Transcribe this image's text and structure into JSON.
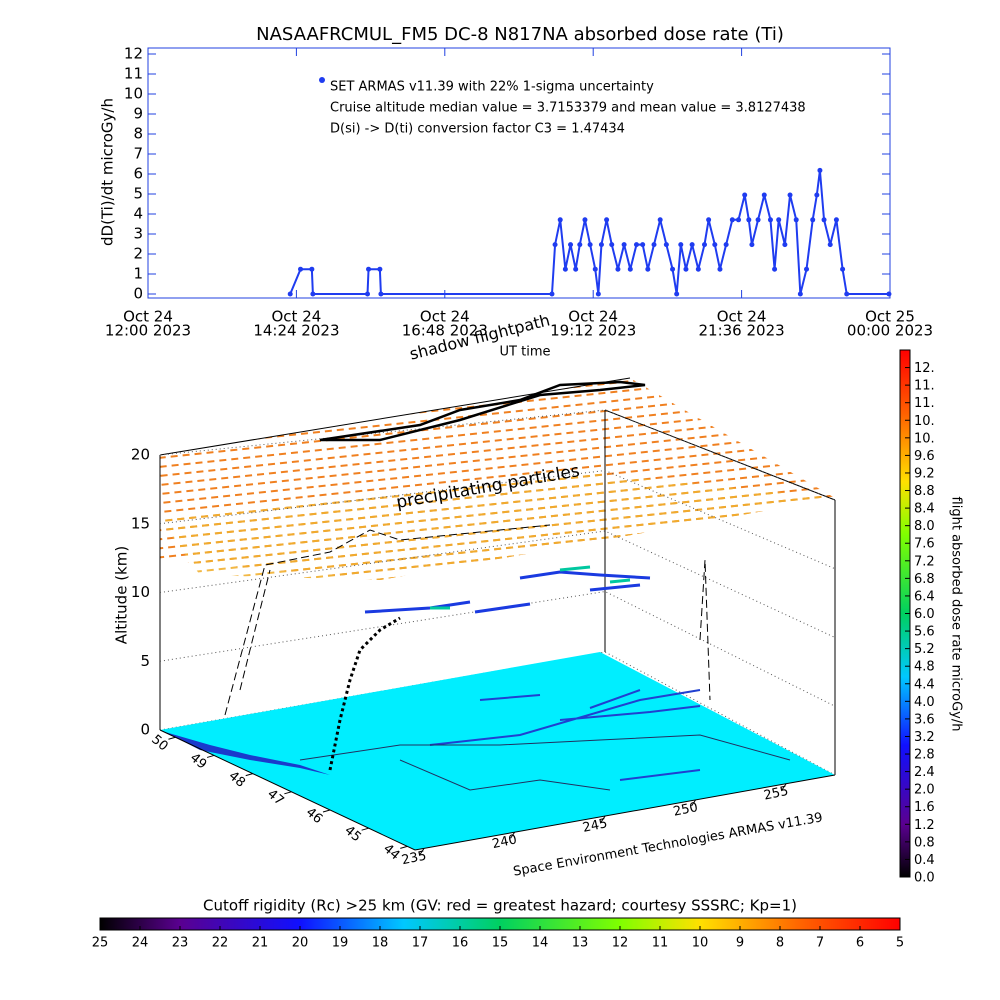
{
  "chart_data": [
    {
      "type": "timeline",
      "title": "NASAAFRCMUL_FM5 DC-8   N817NA absorbed dose rate (Ti)",
      "ylabel": "dD(Ti)/dt microGy/h",
      "xlabel": "UT time",
      "annotations": [
        "SET ARMAS v11.39 with 22% 1-sigma uncertainty",
        "Cruise altitude median value = 3.7153379 and mean value = 3.8127438",
        "D(si) -> D(ti) conversion factor C3 = 1.47434"
      ],
      "color": "#1f3cf0",
      "xlim": [
        "2023-10-24T12:00",
        "2023-10-25T00:00"
      ],
      "xticks": [
        {
          "value": "2023-10-24T12:00",
          "label": [
            "Oct 24",
            "12:00 2023"
          ]
        },
        {
          "value": "2023-10-24T14:24",
          "label": [
            "Oct 24",
            "14:24 2023"
          ]
        },
        {
          "value": "2023-10-24T16:48",
          "label": [
            "Oct 24",
            "16:48 2023"
          ]
        },
        {
          "value": "2023-10-24T19:12",
          "label": [
            "Oct 24",
            "19:12 2023"
          ]
        },
        {
          "value": "2023-10-24T21:36",
          "label": [
            "Oct 24",
            "21:36 2023"
          ]
        },
        {
          "value": "2023-10-25T00:00",
          "label": [
            "Oct 25",
            "00:00 2023"
          ]
        }
      ],
      "ylim": [
        0,
        12
      ],
      "yticks": [
        0,
        1,
        2,
        3,
        4,
        5,
        6,
        7,
        8,
        9,
        10,
        11,
        12
      ],
      "x": [
        "2023-10-24T14:18",
        "2023-10-24T14:28",
        "2023-10-24T14:39",
        "2023-10-24T14:40",
        "2023-10-24T15:33",
        "2023-10-24T15:34",
        "2023-10-24T15:45",
        "2023-10-24T15:46",
        "2023-10-24T18:32",
        "2023-10-24T18:35",
        "2023-10-24T18:40",
        "2023-10-24T18:45",
        "2023-10-24T18:50",
        "2023-10-24T18:55",
        "2023-10-24T18:59",
        "2023-10-24T19:04",
        "2023-10-24T19:09",
        "2023-10-24T19:14",
        "2023-10-24T19:17",
        "2023-10-24T19:20",
        "2023-10-24T19:25",
        "2023-10-24T19:30",
        "2023-10-24T19:36",
        "2023-10-24T19:42",
        "2023-10-24T19:48",
        "2023-10-24T19:54",
        "2023-10-24T20:00",
        "2023-10-24T20:05",
        "2023-10-24T20:11",
        "2023-10-24T20:17",
        "2023-10-24T20:23",
        "2023-10-24T20:29",
        "2023-10-24T20:33",
        "2023-10-24T20:37",
        "2023-10-24T20:42",
        "2023-10-24T20:48",
        "2023-10-24T20:54",
        "2023-10-24T21:00",
        "2023-10-24T21:04",
        "2023-10-24T21:10",
        "2023-10-24T21:15",
        "2023-10-24T21:21",
        "2023-10-24T21:27",
        "2023-10-24T21:33",
        "2023-10-24T21:39",
        "2023-10-24T21:43",
        "2023-10-24T21:46",
        "2023-10-24T21:52",
        "2023-10-24T21:58",
        "2023-10-24T22:04",
        "2023-10-24T22:08",
        "2023-10-24T22:12",
        "2023-10-24T22:18",
        "2023-10-24T22:23",
        "2023-10-24T22:29",
        "2023-10-24T22:33",
        "2023-10-24T22:39",
        "2023-10-24T22:45",
        "2023-10-24T22:49",
        "2023-10-24T22:52",
        "2023-10-24T22:56",
        "2023-10-24T23:02",
        "2023-10-24T23:08",
        "2023-10-24T23:14",
        "2023-10-24T23:18",
        "2023-10-24T23:59"
      ],
      "values": [
        0,
        1.24,
        1.24,
        0,
        0,
        1.24,
        1.24,
        0,
        0,
        2.47,
        3.71,
        1.24,
        2.47,
        1.24,
        2.47,
        3.71,
        2.47,
        1.24,
        0,
        2.47,
        3.71,
        2.47,
        1.24,
        2.47,
        1.24,
        2.47,
        2.47,
        1.24,
        2.47,
        3.71,
        2.47,
        1.24,
        0,
        2.47,
        1.24,
        2.47,
        1.24,
        2.47,
        3.71,
        2.47,
        1.24,
        2.47,
        3.71,
        3.71,
        4.95,
        3.71,
        2.47,
        3.71,
        4.95,
        3.71,
        1.24,
        3.71,
        2.47,
        4.95,
        3.71,
        0,
        1.24,
        3.71,
        4.95,
        6.18,
        3.71,
        2.47,
        3.71,
        1.24,
        0,
        0
      ]
    },
    {
      "type": "surface3d",
      "zlabel": "Altitude (km)",
      "zlim": [
        0,
        20
      ],
      "zticks": [
        0,
        5,
        10,
        15,
        20
      ],
      "xlim": [
        234.5,
        257.7
      ],
      "xticks": [
        235,
        240,
        245,
        250,
        255
      ],
      "ylim": [
        50.4,
        43.8
      ],
      "yticks": [
        50,
        49,
        48,
        47,
        46,
        45,
        44
      ],
      "annotations": [
        "shadow flightpath",
        "precipitating particles",
        "Space Environment Technologies ARMAS v11.39"
      ],
      "colorbar": {
        "title": "flight absorbed dose rate microGy/h",
        "lim": [
          0,
          12
        ],
        "ticks": [
          {
            "value": 0,
            "label": "0.0"
          },
          0.4,
          0.8,
          1.2,
          1.6,
          {
            "value": 2,
            "label": "2.0"
          },
          2.4,
          2.8,
          3.2,
          3.6,
          {
            "value": 4,
            "label": "4.0"
          },
          4.4,
          4.8,
          5.2,
          5.6,
          {
            "value": 6,
            "label": "6.0"
          },
          6.4,
          6.8,
          7.2,
          7.6,
          {
            "value": 8,
            "label": "8.0"
          },
          8.4,
          8.8,
          9.2,
          9.6,
          {
            "value": 10,
            "label": "10."
          },
          {
            "value": 10.4,
            "label": "10."
          },
          {
            "value": 10.8,
            "label": "11."
          },
          {
            "value": 11.2,
            "label": "11."
          },
          {
            "value": 11.6,
            "label": "12."
          }
        ]
      },
      "colorbar2": {
        "title": "Cutoff rigidity (Rc) >25 km (GV: red = greatest hazard; courtesy SSSRC; Kp=1)",
        "lim": [
          25,
          5
        ],
        "ticks": [
          25,
          24,
          23,
          22,
          21,
          20,
          19,
          18,
          17,
          16,
          15,
          14,
          13,
          12,
          11,
          10,
          9,
          8,
          7,
          6,
          5
        ]
      }
    }
  ]
}
